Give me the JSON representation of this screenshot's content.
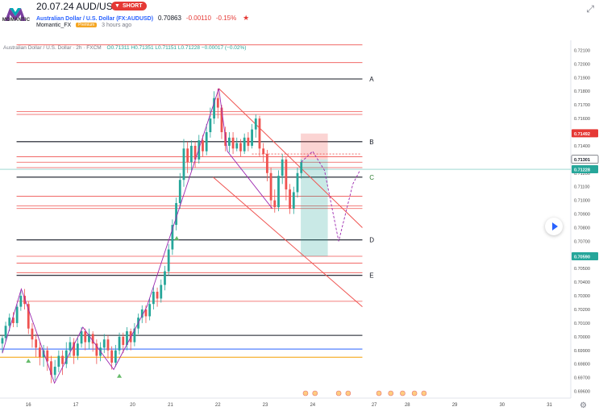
{
  "header": {
    "title": "20.07.24 AUD/USD",
    "idea_badge": "SHORT",
    "idea_arrow": "▼",
    "symbol_name": "Australian Dollar / U.S. Dollar (FX:AUDUSD)",
    "last_price": "0.70863",
    "change": "-0.00110",
    "change_pct": "-0.15%",
    "author": "Momantic_FX",
    "author_badge": "Premium",
    "published": "3 hours ago",
    "logo_text": "MOMANTIC",
    "star_icon": "star-icon",
    "resize_icon": "resize-icon"
  },
  "legend": {
    "text": "Australian Dollar / U.S. Dollar · 2h · FXCM",
    "ohlc": "O0.71311 H0.71351 L0.71151 L0.71228 −0.00017 (−0.02%)"
  },
  "chart_data": {
    "type": "candlestick",
    "y_ticks": [
      "0.72100",
      "0.72000",
      "0.71900",
      "0.71800",
      "0.71700",
      "0.71600",
      "0.71500",
      "0.71400",
      "0.71300",
      "0.71200",
      "0.71100",
      "0.71000",
      "0.70900",
      "0.70800",
      "0.70700",
      "0.70600",
      "0.70500",
      "0.70400",
      "0.70300",
      "0.70200",
      "0.70100",
      "0.70000",
      "0.69900",
      "0.69800",
      "0.69700",
      "0.69600"
    ],
    "ylim": [
      0.6955,
      0.7215
    ],
    "x_ticks": [
      {
        "label": "16",
        "x": 16.0
      },
      {
        "label": "17",
        "x": 17.0
      },
      {
        "label": "20",
        "x": 18.2
      },
      {
        "label": "21",
        "x": 19.0
      },
      {
        "label": "22",
        "x": 20.0
      },
      {
        "label": "23",
        "x": 21.0
      },
      {
        "label": "24",
        "x": 22.0
      },
      {
        "label": "27",
        "x": 23.3
      },
      {
        "label": "28",
        "x": 24.0
      },
      {
        "label": "29",
        "x": 25.0
      },
      {
        "label": "30",
        "x": 26.0
      },
      {
        "label": "31",
        "x": 27.0
      }
    ],
    "xlim": [
      15.4,
      27.45
    ],
    "price_tags": [
      {
        "label": "0.71492",
        "value": 0.71492,
        "color": "#e53935"
      },
      {
        "label": "0.71301",
        "value": 0.71301,
        "color": "#ffffff"
      },
      {
        "label": "0.71228",
        "value": 0.71228,
        "color": "#26a69a"
      },
      {
        "label": "0.70590",
        "value": 0.7059,
        "color": "#26a69a"
      }
    ],
    "levels": [
      {
        "label": "A",
        "value": 0.7189
      },
      {
        "label": "B",
        "value": 0.7143
      },
      {
        "label": "C",
        "value": 0.7117
      },
      {
        "label": "D",
        "value": 0.7071
      },
      {
        "label": "E",
        "value": 0.7045
      }
    ],
    "extra_lines": [
      {
        "value": 0.7001,
        "color": "#131722"
      },
      {
        "value": 0.6991,
        "color": "#2962ff"
      },
      {
        "value": 0.6985,
        "color": "#f59f00"
      }
    ],
    "red_zones": [
      0.7214,
      0.7201,
      0.7165,
      0.7163,
      0.7132,
      0.7128,
      0.7124,
      0.7103,
      0.7096,
      0.7094,
      0.7059,
      0.7054,
      0.7047,
      0.7026
    ],
    "candles": [
      [
        15.45,
        0.6995,
        0.6999,
        0.6988,
        0.7001
      ],
      [
        15.52,
        0.6999,
        0.7008,
        0.6996,
        0.7011
      ],
      [
        15.6,
        0.7008,
        0.7014,
        0.7004,
        0.7017
      ],
      [
        15.68,
        0.7014,
        0.701,
        0.7007,
        0.7018
      ],
      [
        15.76,
        0.701,
        0.7022,
        0.7007,
        0.7024
      ],
      [
        15.84,
        0.7022,
        0.703,
        0.7019,
        0.7034
      ],
      [
        15.92,
        0.703,
        0.7024,
        0.702,
        0.7035
      ],
      [
        16.0,
        0.7024,
        0.7006,
        0.7002,
        0.7026
      ],
      [
        16.08,
        0.7006,
        0.6998,
        0.6992,
        0.701
      ],
      [
        16.16,
        0.6998,
        0.6992,
        0.6985,
        0.7002
      ],
      [
        16.24,
        0.6992,
        0.6985,
        0.6979,
        0.6996
      ],
      [
        16.32,
        0.6985,
        0.699,
        0.6978,
        0.6994
      ],
      [
        16.4,
        0.699,
        0.6982,
        0.6975,
        0.6993
      ],
      [
        16.48,
        0.6982,
        0.6972,
        0.6966,
        0.6986
      ],
      [
        16.56,
        0.6972,
        0.6978,
        0.6968,
        0.6983
      ],
      [
        16.64,
        0.6978,
        0.6986,
        0.6974,
        0.699
      ],
      [
        16.72,
        0.6986,
        0.698,
        0.6972,
        0.699
      ],
      [
        16.8,
        0.698,
        0.699,
        0.6977,
        0.6996
      ],
      [
        16.88,
        0.699,
        0.6996,
        0.6985,
        0.7
      ],
      [
        16.96,
        0.6996,
        0.6986,
        0.698,
        0.6999
      ],
      [
        17.04,
        0.6986,
        0.6995,
        0.6983,
        0.6999
      ],
      [
        17.12,
        0.6995,
        0.7004,
        0.6992,
        0.7007
      ],
      [
        17.2,
        0.7004,
        0.6996,
        0.699,
        0.7006
      ],
      [
        17.28,
        0.6996,
        0.7002,
        0.6991,
        0.7006
      ],
      [
        17.36,
        0.7002,
        0.6995,
        0.6989,
        0.7004
      ],
      [
        17.44,
        0.6995,
        0.6986,
        0.698,
        0.6998
      ],
      [
        17.52,
        0.6986,
        0.6992,
        0.6982,
        0.6996
      ],
      [
        17.6,
        0.6992,
        0.6998,
        0.6988,
        0.7002
      ],
      [
        17.68,
        0.6998,
        0.699,
        0.6984,
        0.7001
      ],
      [
        17.76,
        0.699,
        0.6981,
        0.6976,
        0.6993
      ],
      [
        17.84,
        0.6981,
        0.699,
        0.6978,
        0.6994
      ],
      [
        17.92,
        0.699,
        0.7,
        0.6987,
        0.7003
      ],
      [
        18.0,
        0.7,
        0.6994,
        0.6988,
        0.7003
      ],
      [
        18.08,
        0.6994,
        0.7004,
        0.699,
        0.7007
      ],
      [
        18.16,
        0.7004,
        0.6996,
        0.699,
        0.7006
      ],
      [
        18.24,
        0.6996,
        0.7006,
        0.6993,
        0.701
      ],
      [
        18.32,
        0.7006,
        0.7014,
        0.7002,
        0.7017
      ],
      [
        18.4,
        0.7014,
        0.702,
        0.701,
        0.7023
      ],
      [
        18.48,
        0.702,
        0.7015,
        0.701,
        0.7023
      ],
      [
        18.56,
        0.7015,
        0.7024,
        0.7012,
        0.7028
      ],
      [
        18.64,
        0.7024,
        0.7033,
        0.702,
        0.7037
      ],
      [
        18.72,
        0.7033,
        0.7028,
        0.7022,
        0.7036
      ],
      [
        18.8,
        0.7028,
        0.7038,
        0.7025,
        0.7042
      ],
      [
        18.88,
        0.7038,
        0.7048,
        0.7034,
        0.7052
      ],
      [
        18.96,
        0.7048,
        0.7064,
        0.7045,
        0.7068
      ],
      [
        19.04,
        0.7064,
        0.7082,
        0.706,
        0.7086
      ],
      [
        19.12,
        0.7082,
        0.7098,
        0.7078,
        0.7102
      ],
      [
        19.2,
        0.7098,
        0.7115,
        0.7094,
        0.712
      ],
      [
        19.28,
        0.7115,
        0.7138,
        0.711,
        0.7145
      ],
      [
        19.36,
        0.7138,
        0.7128,
        0.712,
        0.7143
      ],
      [
        19.44,
        0.7128,
        0.714,
        0.7122,
        0.7144
      ],
      [
        19.52,
        0.714,
        0.713,
        0.7124,
        0.7143
      ],
      [
        19.6,
        0.713,
        0.7144,
        0.7127,
        0.7148
      ],
      [
        19.68,
        0.7144,
        0.7136,
        0.7132,
        0.7148
      ],
      [
        19.76,
        0.7136,
        0.715,
        0.7133,
        0.7156
      ],
      [
        19.84,
        0.715,
        0.716,
        0.7146,
        0.7168
      ],
      [
        19.92,
        0.716,
        0.7175,
        0.7156,
        0.718
      ],
      [
        20.0,
        0.7175,
        0.7168,
        0.716,
        0.7182
      ],
      [
        20.08,
        0.7168,
        0.715,
        0.7145,
        0.717
      ],
      [
        20.16,
        0.715,
        0.714,
        0.7136,
        0.7154
      ],
      [
        20.24,
        0.714,
        0.7146,
        0.7135,
        0.715
      ],
      [
        20.32,
        0.7146,
        0.7138,
        0.7134,
        0.715
      ],
      [
        20.4,
        0.7138,
        0.7142,
        0.7136,
        0.7146
      ],
      [
        20.48,
        0.7142,
        0.7136,
        0.7132,
        0.7145
      ],
      [
        20.56,
        0.7136,
        0.7146,
        0.7134,
        0.7149
      ],
      [
        20.64,
        0.7146,
        0.714,
        0.7136,
        0.715
      ],
      [
        20.72,
        0.714,
        0.7152,
        0.7138,
        0.7156
      ],
      [
        20.8,
        0.7152,
        0.716,
        0.7146,
        0.7163
      ],
      [
        20.88,
        0.716,
        0.7138,
        0.7132,
        0.7162
      ],
      [
        20.96,
        0.7138,
        0.7134,
        0.7128,
        0.7142
      ],
      [
        21.04,
        0.7134,
        0.712,
        0.7114,
        0.7137
      ],
      [
        21.12,
        0.712,
        0.71,
        0.7094,
        0.7124
      ],
      [
        21.2,
        0.71,
        0.7095,
        0.7091,
        0.7108
      ],
      [
        21.28,
        0.7095,
        0.7118,
        0.7092,
        0.7122
      ],
      [
        21.36,
        0.7118,
        0.713,
        0.7112,
        0.7134
      ],
      [
        21.44,
        0.713,
        0.7108,
        0.71,
        0.7132
      ],
      [
        21.52,
        0.7108,
        0.7094,
        0.709,
        0.7112
      ],
      [
        21.6,
        0.7094,
        0.7106,
        0.709,
        0.711
      ],
      [
        21.68,
        0.7106,
        0.712,
        0.7102,
        0.7124
      ],
      [
        21.76,
        0.712,
        0.7128,
        0.7116,
        0.713
      ]
    ],
    "pattern_lines": [
      [
        [
          15.45,
          0.6988
        ],
        [
          15.85,
          0.7035
        ],
        [
          16.55,
          0.6966
        ],
        [
          17.15,
          0.7007
        ],
        [
          17.8,
          0.6976
        ],
        [
          18.5,
          0.7022
        ],
        [
          20.02,
          0.7182
        ],
        [
          20.2,
          0.7136
        ],
        [
          21.15,
          0.7094
        ]
      ]
    ],
    "channel_lines": [
      {
        "from": [
          20.02,
          0.7182
        ],
        "to": [
          23.05,
          0.708
        ]
      },
      {
        "from": [
          19.9,
          0.7117
        ],
        "to": [
          23.05,
          0.7022
        ]
      }
    ],
    "projection_path": [
      [
        21.76,
        0.7128
      ],
      [
        22.0,
        0.7136
      ],
      [
        22.25,
        0.7122
      ],
      [
        22.55,
        0.707
      ],
      [
        22.85,
        0.7112
      ],
      [
        23.0,
        0.7122
      ]
    ],
    "short_position": {
      "entry": 0.713,
      "stop": 0.7149,
      "target": 0.7059,
      "x0": 21.75,
      "x1": 22.32
    },
    "dotted_line": {
      "value": 0.7134,
      "x0": 20.72,
      "x1": 23.0
    }
  },
  "ui": {
    "play_icon": "play-icon"
  }
}
